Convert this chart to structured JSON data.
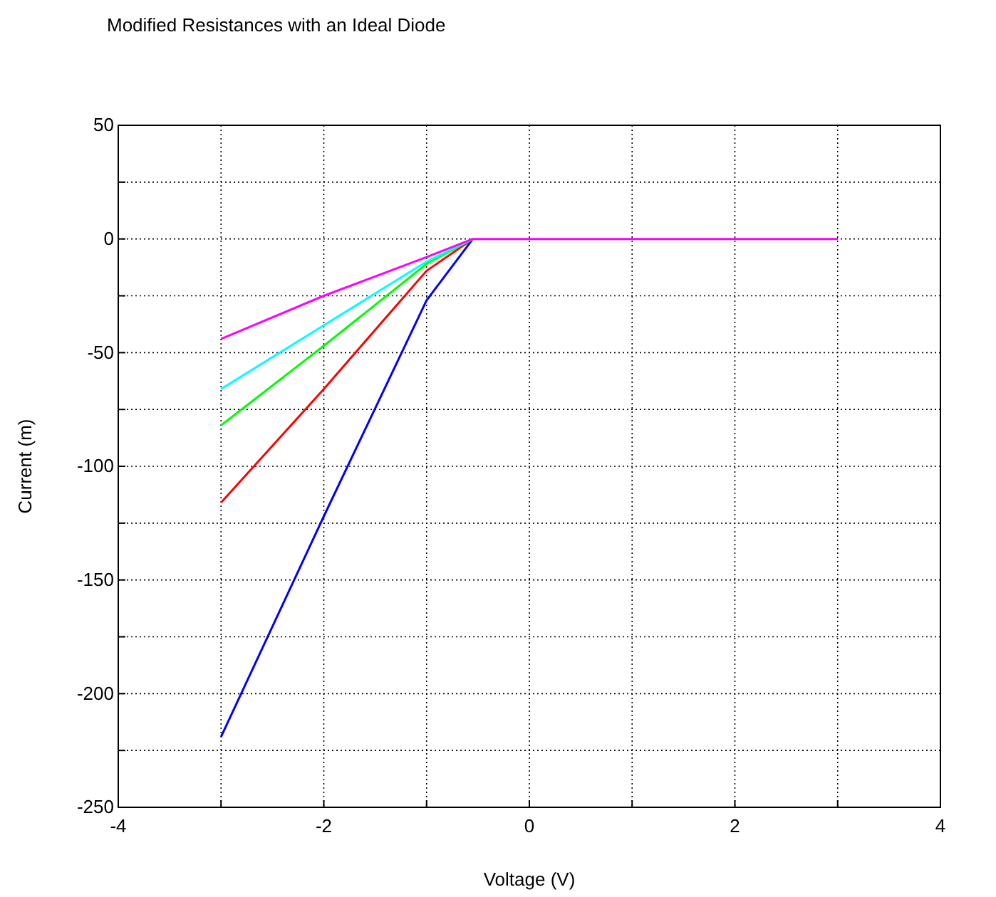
{
  "chart_data": {
    "type": "line",
    "title": "Modified Resistances with an Ideal Diode",
    "xlabel": "Voltage  (V)",
    "ylabel": "Current  (m)",
    "xlim": [
      -4,
      4
    ],
    "ylim": [
      -250,
      50
    ],
    "xticks": [
      -4,
      {
        "value": -3,
        "label": null
      },
      -2,
      {
        "value": -1,
        "label": null
      },
      0,
      {
        "value": 1,
        "label": null
      },
      2,
      {
        "value": 3,
        "label": null
      },
      4
    ],
    "yticks": [
      -250,
      {
        "value": -225,
        "label": null
      },
      -200,
      {
        "value": -175,
        "label": null
      },
      -150,
      {
        "value": -125,
        "label": null
      },
      -100,
      {
        "value": -75,
        "label": null
      },
      -50,
      {
        "value": -25,
        "label": null
      },
      0,
      {
        "value": 25,
        "label": null
      },
      50
    ],
    "grid": true,
    "line_style": "solid",
    "x": [
      -3,
      -2,
      -1,
      -0.55,
      0,
      3
    ],
    "series": [
      {
        "color": "#0000ff",
        "values": [
          -219,
          -122,
          -27,
          0,
          null,
          null
        ]
      },
      {
        "color": "#ff0000",
        "values": [
          -116,
          -66,
          -14,
          0,
          null,
          null
        ]
      },
      {
        "color": "#00ff00",
        "values": [
          -82,
          -47,
          -11,
          0,
          null,
          null
        ]
      },
      {
        "color": "#00ffff",
        "values": [
          -66,
          -38,
          -10,
          0,
          null,
          null
        ]
      },
      {
        "color": "#ff00ff",
        "values": [
          -44,
          -25,
          -8,
          0,
          0,
          0
        ]
      }
    ]
  }
}
